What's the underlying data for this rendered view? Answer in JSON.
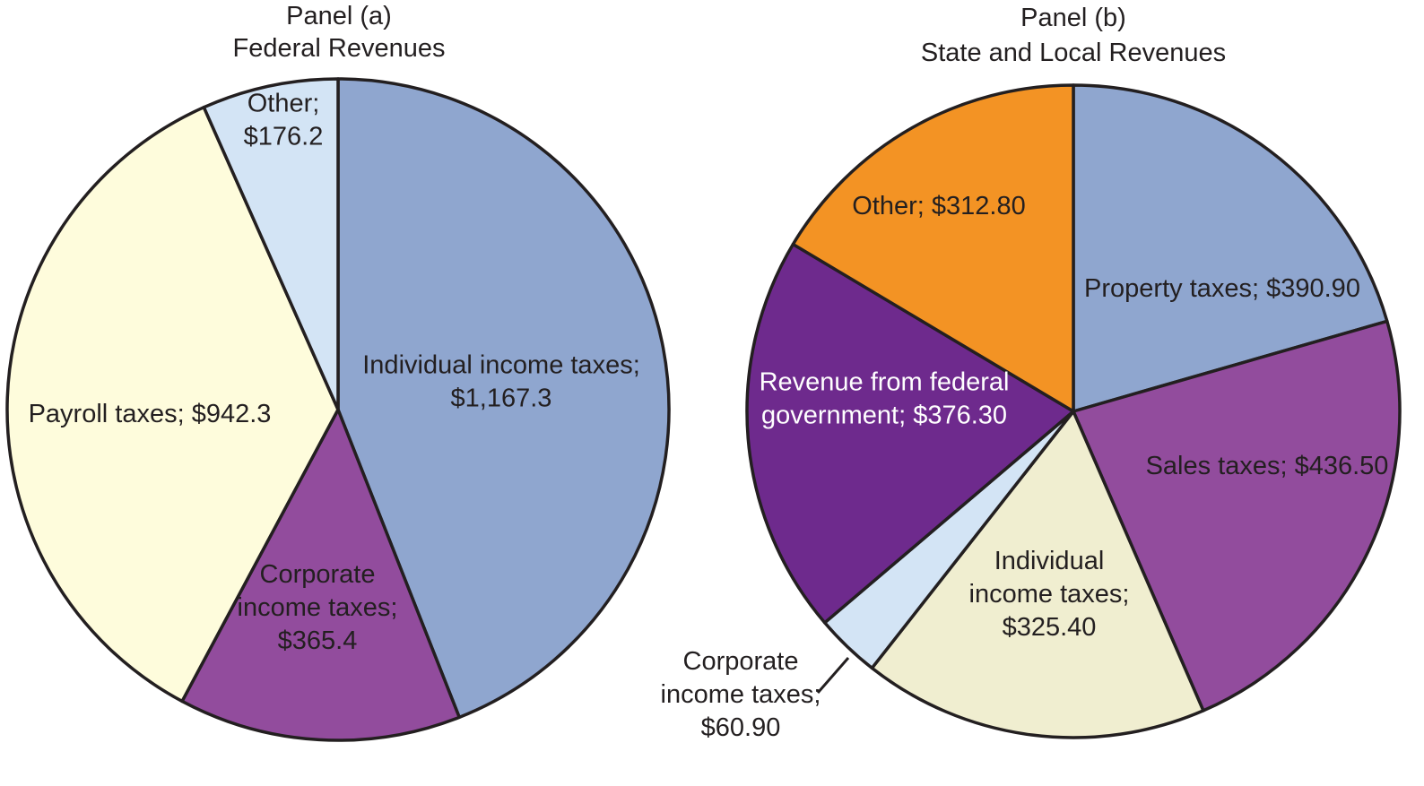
{
  "chart_data": [
    {
      "type": "pie",
      "title_line1": "Panel (a)",
      "title_line2": "Federal Revenues",
      "slices": [
        {
          "name": "Individual income taxes",
          "value": 1167.3,
          "color": "#8fa6cf",
          "label_lines": [
            "Individual income taxes;",
            "$1,167.3"
          ],
          "text": "dark"
        },
        {
          "name": "Corporate income taxes",
          "value": 365.4,
          "color": "#924c9d",
          "label_lines": [
            "Corporate",
            "income taxes;",
            "$365.4"
          ],
          "text": "dark"
        },
        {
          "name": "Payroll taxes",
          "value": 942.3,
          "color": "#fefcdc",
          "label_lines": [
            "Payroll taxes; $942.3"
          ],
          "text": "dark"
        },
        {
          "name": "Other",
          "value": 176.2,
          "color": "#d3e4f5",
          "label_lines": [
            "Other;",
            "$176.2"
          ],
          "text": "dark"
        }
      ]
    },
    {
      "type": "pie",
      "title_line1": "Panel (b)",
      "title_line2": "State and Local Revenues",
      "slices": [
        {
          "name": "Property taxes",
          "value": 390.9,
          "color": "#8fa6cf",
          "label_lines": [
            "Property taxes; $390.90"
          ],
          "text": "dark"
        },
        {
          "name": "Sales taxes",
          "value": 436.5,
          "color": "#924c9d",
          "label_lines": [
            "Sales taxes; $436.50"
          ],
          "text": "dark"
        },
        {
          "name": "Individual income taxes",
          "value": 325.4,
          "color": "#f0eed0",
          "label_lines": [
            "Individual",
            "income taxes;",
            "$325.40"
          ],
          "text": "dark"
        },
        {
          "name": "Corporate income taxes",
          "value": 60.9,
          "color": "#d3e4f5",
          "label_lines": [
            "Corporate",
            "income taxes;",
            "$60.90"
          ],
          "text": "dark"
        },
        {
          "name": "Revenue from federal government",
          "value": 376.3,
          "color": "#6e2a8d",
          "label_lines": [
            "Revenue from federal",
            "government; $376.30"
          ],
          "text": "light"
        },
        {
          "name": "Other",
          "value": 312.8,
          "color": "#f39324",
          "label_lines": [
            "Other; $312.80"
          ],
          "text": "dark"
        }
      ]
    }
  ]
}
